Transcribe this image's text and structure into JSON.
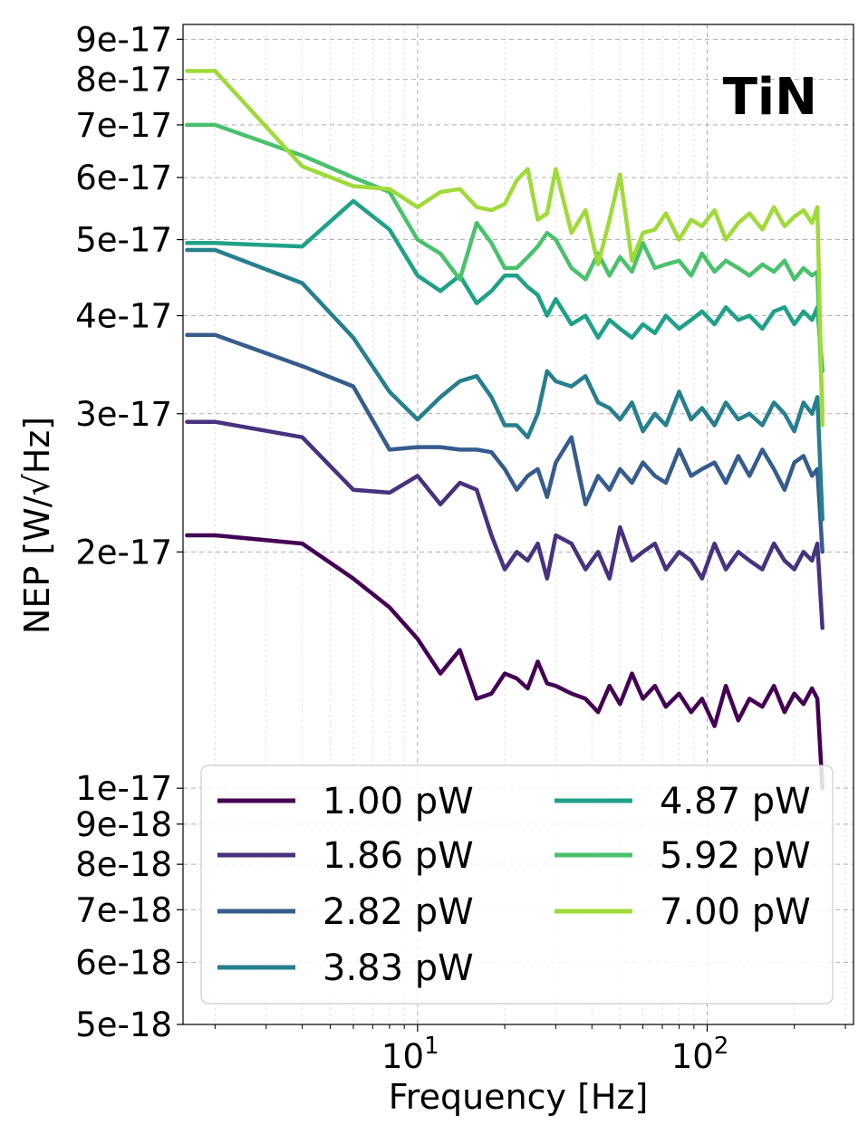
{
  "chart_data": {
    "type": "line",
    "title": "",
    "annotation": "TiN",
    "xlabel": "Frequency [Hz]",
    "ylabel": "NEP [W/√Hz]",
    "xscale": "log",
    "yscale": "log",
    "xlim": [
      1.55,
      320
    ],
    "ylim": [
      5e-18,
      9.4e-17
    ],
    "grid": true,
    "legend_position": "lower-center",
    "legend_columns": 2,
    "y_ticks": [
      "5e-18",
      "6e-18",
      "7e-18",
      "8e-18",
      "9e-18",
      "1e-17",
      "2e-17",
      "3e-17",
      "4e-17",
      "5e-17",
      "6e-17",
      "7e-17",
      "8e-17",
      "9e-17"
    ],
    "x_ticks": [
      {
        "base": "10",
        "exp": "1"
      },
      {
        "base": "10",
        "exp": "2"
      }
    ],
    "x": [
      1.6,
      2.0,
      4.0,
      6.0,
      8.0,
      10.0,
      12.0,
      14.0,
      16.0,
      18.0,
      20.0,
      22.0,
      24.0,
      26.0,
      28.0,
      30.0,
      34.0,
      38.0,
      42.0,
      46.0,
      50.0,
      55.0,
      60.0,
      66.0,
      72.0,
      80.0,
      88.0,
      96.0,
      106.0,
      116.0,
      128.0,
      140.0,
      155.0,
      170.0,
      185.0,
      200.0,
      215.0,
      230.0,
      240.0,
      250.0
    ],
    "series": [
      {
        "name": "1.00 pW",
        "color": "#440154",
        "values": [
          2.1e-17,
          2.1e-17,
          2.05e-17,
          1.85e-17,
          1.7e-17,
          1.55e-17,
          1.4e-17,
          1.5e-17,
          1.3e-17,
          1.32e-17,
          1.4e-17,
          1.38e-17,
          1.34e-17,
          1.45e-17,
          1.36e-17,
          1.35e-17,
          1.32e-17,
          1.3e-17,
          1.25e-17,
          1.35e-17,
          1.28e-17,
          1.4e-17,
          1.3e-17,
          1.35e-17,
          1.27e-17,
          1.32e-17,
          1.25e-17,
          1.3e-17,
          1.2e-17,
          1.35e-17,
          1.22e-17,
          1.3e-17,
          1.27e-17,
          1.35e-17,
          1.25e-17,
          1.32e-17,
          1.28e-17,
          1.34e-17,
          1.3e-17,
          1e-17
        ]
      },
      {
        "name": "1.86 pW",
        "color": "#46327e",
        "values": [
          2.93e-17,
          2.93e-17,
          2.8e-17,
          2.4e-17,
          2.38e-17,
          2.5e-17,
          2.3e-17,
          2.45e-17,
          2.4e-17,
          2.1e-17,
          1.9e-17,
          2e-17,
          1.95e-17,
          2.05e-17,
          1.85e-17,
          2.1e-17,
          2.05e-17,
          1.9e-17,
          2e-17,
          1.85e-17,
          2.15e-17,
          1.95e-17,
          2e-17,
          2.05e-17,
          1.9e-17,
          2e-17,
          1.95e-17,
          1.85e-17,
          2.05e-17,
          1.9e-17,
          2e-17,
          1.95e-17,
          1.9e-17,
          2.05e-17,
          1.95e-17,
          1.9e-17,
          2e-17,
          1.95e-17,
          2.05e-17,
          1.6e-17
        ]
      },
      {
        "name": "2.82 pW",
        "color": "#365c8d",
        "values": [
          3.78e-17,
          3.78e-17,
          3.45e-17,
          3.25e-17,
          2.7e-17,
          2.72e-17,
          2.72e-17,
          2.7e-17,
          2.7e-17,
          2.68e-17,
          2.55e-17,
          2.4e-17,
          2.5e-17,
          2.55e-17,
          2.35e-17,
          2.6e-17,
          2.8e-17,
          2.3e-17,
          2.5e-17,
          2.4e-17,
          2.55e-17,
          2.45e-17,
          2.6e-17,
          2.5e-17,
          2.45e-17,
          2.7e-17,
          2.5e-17,
          2.55e-17,
          2.6e-17,
          2.45e-17,
          2.65e-17,
          2.5e-17,
          2.7e-17,
          2.55e-17,
          2.4e-17,
          2.6e-17,
          2.65e-17,
          2.5e-17,
          2.55e-17,
          2e-17
        ]
      },
      {
        "name": "3.83 pW",
        "color": "#277f8e",
        "values": [
          4.85e-17,
          4.85e-17,
          4.4e-17,
          3.75e-17,
          3.2e-17,
          2.95e-17,
          3.15e-17,
          3.3e-17,
          3.35e-17,
          3.15e-17,
          2.9e-17,
          2.9e-17,
          2.8e-17,
          3e-17,
          3.4e-17,
          3.3e-17,
          3.25e-17,
          3.35e-17,
          3.1e-17,
          3.05e-17,
          2.95e-17,
          3.1e-17,
          2.85e-17,
          3e-17,
          2.9e-17,
          3.2e-17,
          2.95e-17,
          3.05e-17,
          2.9e-17,
          3.1e-17,
          2.95e-17,
          3e-17,
          2.9e-17,
          3.1e-17,
          3e-17,
          2.85e-17,
          3.1e-17,
          3e-17,
          3.15e-17,
          2.2e-17
        ]
      },
      {
        "name": "4.87 pW",
        "color": "#1fa187",
        "values": [
          4.95e-17,
          4.95e-17,
          4.9e-17,
          5.6e-17,
          5.15e-17,
          4.5e-17,
          4.3e-17,
          4.5e-17,
          4.15e-17,
          4.3e-17,
          4.5e-17,
          4.5e-17,
          4.35e-17,
          4.25e-17,
          4e-17,
          4.2e-17,
          3.9e-17,
          4e-17,
          3.75e-17,
          3.95e-17,
          3.85e-17,
          3.75e-17,
          3.9e-17,
          3.8e-17,
          4e-17,
          3.85e-17,
          3.95e-17,
          4.05e-17,
          3.9e-17,
          4.1e-17,
          3.95e-17,
          4e-17,
          3.85e-17,
          4.05e-17,
          4.1e-17,
          3.9e-17,
          4.05e-17,
          3.95e-17,
          4.1e-17,
          3.4e-17
        ]
      },
      {
        "name": "5.92 pW",
        "color": "#4ac16d",
        "values": [
          7e-17,
          7e-17,
          6.4e-17,
          6e-17,
          5.75e-17,
          5e-17,
          4.8e-17,
          4.45e-17,
          5.25e-17,
          4.95e-17,
          4.6e-17,
          4.6e-17,
          4.75e-17,
          4.9e-17,
          5.1e-17,
          5e-17,
          4.6e-17,
          4.45e-17,
          4.8e-17,
          4.5e-17,
          4.75e-17,
          4.55e-17,
          4.95e-17,
          4.6e-17,
          4.65e-17,
          4.7e-17,
          4.5e-17,
          4.8e-17,
          4.55e-17,
          4.7e-17,
          4.6e-17,
          4.5e-17,
          4.65e-17,
          4.55e-17,
          4.7e-17,
          4.45e-17,
          4.6e-17,
          4.5e-17,
          4.55e-17,
          3e-17
        ]
      },
      {
        "name": "7.00 pW",
        "color": "#a0da39",
        "values": [
          8.2e-17,
          8.2e-17,
          6.2e-17,
          5.85e-17,
          5.8e-17,
          5.5e-17,
          5.75e-17,
          5.8e-17,
          5.5e-17,
          5.45e-17,
          5.55e-17,
          5.95e-17,
          6.15e-17,
          5.3e-17,
          5.4e-17,
          6.15e-17,
          5.1e-17,
          5.45e-17,
          4.65e-17,
          5.3e-17,
          6.05e-17,
          4.7e-17,
          5.1e-17,
          5.15e-17,
          5.4e-17,
          5e-17,
          5.3e-17,
          5.2e-17,
          5.45e-17,
          5e-17,
          5.25e-17,
          5.4e-17,
          5.15e-17,
          5.5e-17,
          5.2e-17,
          5.35e-17,
          5.45e-17,
          5.25e-17,
          5.5e-17,
          2.9e-17
        ]
      }
    ]
  }
}
